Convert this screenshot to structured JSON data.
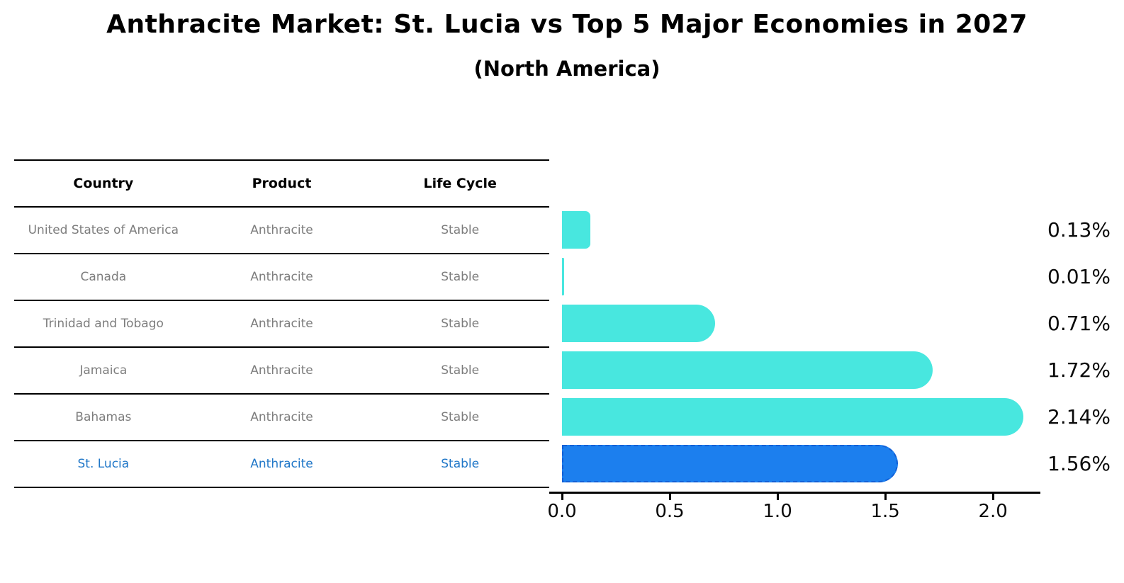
{
  "title": "Anthracite Market: St. Lucia vs Top 5 Major Economies in 2027",
  "subtitle": "(North America)",
  "table": {
    "headers": [
      "Country",
      "Product",
      "Life Cycle"
    ],
    "rows": [
      {
        "country": "United States of America",
        "product": "Anthracite",
        "life_cycle": "Stable",
        "highlight": false
      },
      {
        "country": "Canada",
        "product": "Anthracite",
        "life_cycle": "Stable",
        "highlight": false
      },
      {
        "country": "Trinidad and Tobago",
        "product": "Anthracite",
        "life_cycle": "Stable",
        "highlight": false
      },
      {
        "country": "Jamaica",
        "product": "Anthracite",
        "life_cycle": "Stable",
        "highlight": false
      },
      {
        "country": "Bahamas",
        "product": "Anthracite",
        "life_cycle": "Stable",
        "highlight": false
      },
      {
        "country": "St. Lucia",
        "product": "Anthracite",
        "life_cycle": "Stable",
        "highlight": true
      }
    ]
  },
  "chart_data": {
    "type": "bar",
    "orientation": "horizontal",
    "title": "Anthracite Market: St. Lucia vs Top 5 Major Economies in 2027",
    "subtitle": "(North America)",
    "categories": [
      "United States of America",
      "Canada",
      "Trinidad and Tobago",
      "Jamaica",
      "Bahamas",
      "St. Lucia"
    ],
    "values": [
      0.13,
      0.01,
      0.71,
      1.72,
      2.14,
      1.56
    ],
    "value_labels": [
      "0.13%",
      "0.01%",
      "0.71%",
      "1.72%",
      "2.14%",
      "1.56%"
    ],
    "unit": "%",
    "xlim": [
      0,
      2.2
    ],
    "x_tick_values": [
      0.0,
      0.5,
      1.0,
      1.5,
      2.0
    ],
    "x_tick_labels": [
      "0.0",
      "0.5",
      "1.0",
      "1.5",
      "2.0"
    ],
    "grid": false,
    "legend": false,
    "highlight_index": 5
  },
  "colors": {
    "background": "#FFFFFF",
    "bar": "#48E7DF",
    "highlight_bar": "#1C7FEE",
    "highlight_bar_border": "#1360D6",
    "highlight_text": "#2077C8",
    "table_line": "#000000",
    "header_text": "#000000",
    "cell_text": "#7D7D7D",
    "axis": "#000000",
    "value_label": "#0A0A0A"
  }
}
